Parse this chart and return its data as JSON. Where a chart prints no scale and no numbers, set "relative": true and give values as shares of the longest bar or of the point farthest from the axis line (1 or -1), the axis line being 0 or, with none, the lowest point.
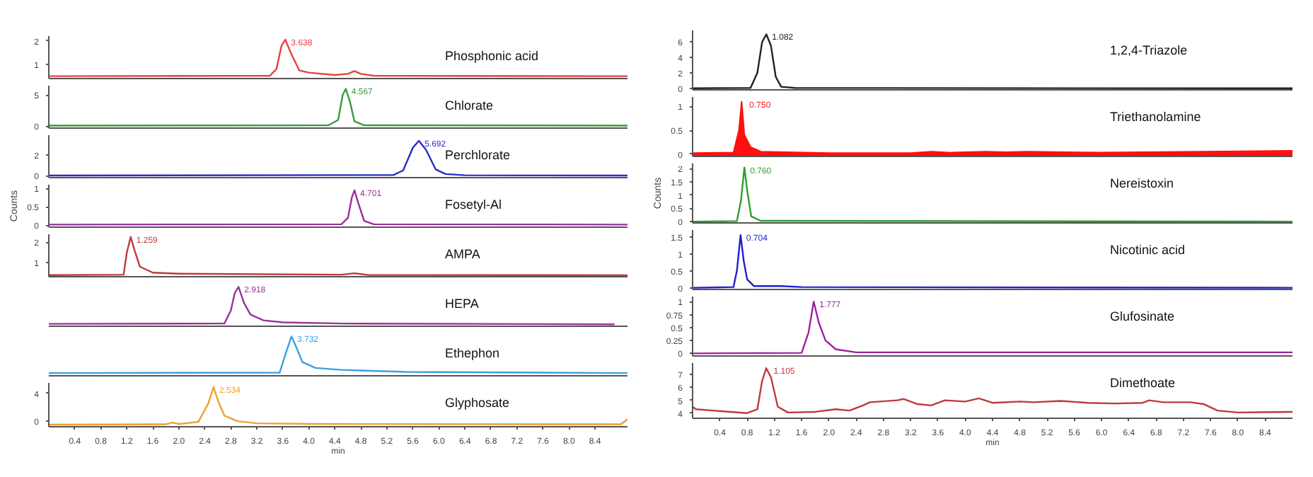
{
  "chart_data": [
    {
      "type": "line",
      "title": "Phosphonic acid",
      "x": [
        0,
        3.4,
        3.5,
        3.58,
        3.638,
        3.72,
        3.85,
        4.0,
        4.4,
        4.6,
        4.7,
        4.8,
        5.0,
        8.9
      ],
      "xlim": [
        0,
        8.9
      ],
      "ylim": [
        0.4,
        2.2
      ],
      "yticks": [
        1,
        2
      ],
      "tick_labels": "y",
      "annotations": [
        {
          "text": "3.638",
          "x": 3.638,
          "y": 2.05
        }
      ],
      "series": [
        {
          "color": "#e8413c",
          "values": [
            0.5,
            0.52,
            0.8,
            1.8,
            2.05,
            1.5,
            0.75,
            0.65,
            0.55,
            0.6,
            0.72,
            0.6,
            0.52,
            0.5
          ]
        }
      ]
    },
    {
      "type": "line",
      "title": "Chlorate",
      "x": [
        0,
        4.3,
        4.45,
        4.52,
        4.567,
        4.63,
        4.7,
        4.85,
        8.9
      ],
      "xlim": [
        0,
        8.9
      ],
      "ylim": [
        -0.3,
        6.5
      ],
      "yticks": [
        0,
        5
      ],
      "tick_labels": "y",
      "annotations": [
        {
          "text": "4.567",
          "x": 4.567,
          "y": 6.0
        }
      ],
      "series": [
        {
          "color": "#3a9a3a",
          "values": [
            0.1,
            0.15,
            1,
            5,
            6.0,
            4,
            0.8,
            0.15,
            0.1
          ]
        }
      ]
    },
    {
      "type": "line",
      "title": "Perchlorate",
      "x": [
        0,
        5.3,
        5.45,
        5.6,
        5.692,
        5.8,
        5.95,
        6.1,
        6.4,
        8.9
      ],
      "xlim": [
        0,
        8.9
      ],
      "ylim": [
        -0.2,
        3.9
      ],
      "yticks": [
        0,
        2
      ],
      "tick_labels": "y",
      "annotations": [
        {
          "text": "5.692",
          "x": 5.692,
          "y": 3.35
        }
      ],
      "series": [
        {
          "color": "#2b2bc8",
          "values": [
            0,
            0.05,
            0.5,
            2.7,
            3.35,
            2.5,
            0.6,
            0.15,
            0.03,
            0
          ]
        }
      ]
    },
    {
      "type": "line",
      "title": "Fosetyl-Al",
      "ylabel": "Counts",
      "x": [
        0,
        4.5,
        4.6,
        4.66,
        4.701,
        4.76,
        4.85,
        5.0,
        8.9
      ],
      "xlim": [
        0,
        8.9
      ],
      "ylim": [
        -0.05,
        1.1
      ],
      "yticks": [
        0,
        0.5,
        1
      ],
      "tick_labels": "y",
      "annotations": [
        {
          "text": "4.701",
          "x": 4.701,
          "y": 0.95
        }
      ],
      "series": [
        {
          "color": "#9b2d9b",
          "values": [
            0.02,
            0.03,
            0.2,
            0.75,
            0.95,
            0.6,
            0.12,
            0.03,
            0.02
          ]
        }
      ]
    },
    {
      "type": "line",
      "title": "AMPA",
      "x": [
        0,
        1.15,
        1.2,
        1.259,
        1.32,
        1.4,
        1.6,
        2.0,
        4.5,
        4.7,
        4.9,
        8.9
      ],
      "xlim": [
        0,
        8.9
      ],
      "ylim": [
        0.3,
        2.4
      ],
      "yticks": [
        1,
        2
      ],
      "tick_labels": "y",
      "annotations": [
        {
          "text": "1.259",
          "x": 1.259,
          "y": 2.27
        }
      ],
      "series": [
        {
          "color": "#c0393b",
          "values": [
            0.38,
            0.4,
            1.5,
            2.27,
            1.6,
            0.8,
            0.5,
            0.45,
            0.4,
            0.47,
            0.39,
            0.37
          ]
        }
      ]
    },
    {
      "type": "line",
      "title": "HEPA",
      "relative": true,
      "x": [
        0,
        2.7,
        2.8,
        2.86,
        2.918,
        3.0,
        3.1,
        3.3,
        3.6,
        4.5,
        8.7
      ],
      "xlim": [
        0,
        8.9
      ],
      "tick_labels": false,
      "annotations": [
        {
          "text": "2.918",
          "x": 2.918,
          "y": 1
        }
      ],
      "series": [
        {
          "color": "#993399",
          "values": [
            0.06,
            0.07,
            0.4,
            0.85,
            1,
            0.6,
            0.3,
            0.15,
            0.1,
            0.07,
            0.05
          ]
        }
      ]
    },
    {
      "type": "line",
      "title": "Ethephon",
      "relative": true,
      "x": [
        0,
        3.55,
        3.65,
        3.732,
        3.8,
        3.9,
        4.1,
        4.5,
        5.5,
        8.9
      ],
      "xlim": [
        0,
        8.9
      ],
      "tick_labels": false,
      "annotations": [
        {
          "text": "3.732",
          "x": 3.732,
          "y": 1
        }
      ],
      "series": [
        {
          "color": "#3aa0e0",
          "values": [
            0.07,
            0.08,
            0.6,
            1,
            0.75,
            0.35,
            0.2,
            0.15,
            0.1,
            0.07
          ]
        }
      ]
    },
    {
      "type": "line",
      "title": "Glyphosate",
      "xlabel": "min",
      "x": [
        0,
        1.8,
        1.9,
        2.0,
        2.3,
        2.45,
        2.534,
        2.6,
        2.7,
        2.9,
        3.2,
        4.0,
        8.8,
        8.9
      ],
      "xlim": [
        0,
        8.9
      ],
      "ylim": [
        -0.8,
        5.5
      ],
      "yticks": [
        0,
        4
      ],
      "xticks": [
        0.4,
        0.8,
        1.2,
        1.6,
        {
          "value": 2,
          "label": "2.0"
        },
        2.4,
        2.8,
        3.2,
        3.6,
        {
          "value": 4,
          "label": "4.0"
        },
        4.4,
        4.8,
        5.2,
        5.6,
        {
          "value": 6,
          "label": "6.0"
        },
        6.4,
        6.8,
        7.2,
        7.6,
        {
          "value": 8,
          "label": "8.0"
        },
        8.4
      ],
      "annotations": [
        {
          "text": "2.534",
          "x": 2.534,
          "y": 4.9
        }
      ],
      "series": [
        {
          "color": "#f0a030",
          "values": [
            -0.5,
            -0.45,
            -0.2,
            -0.4,
            -0.1,
            2.5,
            4.9,
            3,
            0.8,
            0,
            -0.3,
            -0.4,
            -0.45,
            0.3
          ]
        }
      ]
    },
    {
      "type": "line",
      "title": "1,2,4-Triazole",
      "x": [
        0,
        0.85,
        0.95,
        1.02,
        1.082,
        1.15,
        1.22,
        1.3,
        1.5,
        8.8
      ],
      "xlim": [
        0,
        8.8
      ],
      "ylim": [
        -0.2,
        7.5
      ],
      "yticks": [
        0,
        2,
        4,
        6
      ],
      "tick_labels": "y",
      "annotations": [
        {
          "text": "1.082",
          "x": 1.082,
          "y": 7.0
        }
      ],
      "series": [
        {
          "color": "#222222",
          "values": [
            0,
            0.05,
            2,
            6,
            7,
            5.5,
            1.5,
            0.2,
            0.05,
            0
          ]
        }
      ]
    },
    {
      "type": "area",
      "title": "Triethanolamine",
      "x": [
        0,
        0.6,
        0.68,
        0.72,
        0.76,
        0.85,
        1.0,
        2.0,
        3.2,
        3.5,
        3.8,
        4.3,
        4.6,
        4.9,
        6.0,
        7.5,
        8.8
      ],
      "xlim": [
        0,
        8.8
      ],
      "ylim": [
        -0.05,
        1.2
      ],
      "yticks": [
        0,
        0.5,
        1
      ],
      "tick_labels": "y",
      "annotations": [
        {
          "text": "0.750",
          "x": 0.75,
          "y": 1.1
        }
      ],
      "series": [
        {
          "color": "#ff1010",
          "values": [
            0.02,
            0.03,
            0.5,
            1.1,
            0.4,
            0.15,
            0.05,
            0.02,
            0.02,
            0.05,
            0.03,
            0.05,
            0.04,
            0.05,
            0.03,
            0.05,
            0.07
          ]
        }
      ]
    },
    {
      "type": "line",
      "title": "Nereistoxin",
      "ylabel": "Counts",
      "x": [
        0,
        0.65,
        0.71,
        0.76,
        0.8,
        0.86,
        1.0,
        8.8
      ],
      "xlim": [
        0,
        8.8
      ],
      "ylim": [
        -0.05,
        2.2
      ],
      "yticks": [
        0,
        0.5,
        1,
        1.5,
        2
      ],
      "tick_labels": "y",
      "annotations": [
        {
          "text": "0.760",
          "x": 0.76,
          "y": 2.05
        }
      ],
      "series": [
        {
          "color": "#2e9e2e",
          "values": [
            0,
            0.02,
            0.8,
            2.05,
            1.2,
            0.2,
            0.03,
            0
          ]
        }
      ]
    },
    {
      "type": "line",
      "title": "Nicotinic acid",
      "x": [
        0,
        0.6,
        0.65,
        0.704,
        0.75,
        0.8,
        0.9,
        1.3,
        1.6,
        8.8
      ],
      "xlim": [
        0,
        8.8
      ],
      "ylim": [
        -0.05,
        1.7
      ],
      "yticks": [
        0,
        0.5,
        1,
        1.5
      ],
      "tick_labels": "y",
      "annotations": [
        {
          "text": "0.704",
          "x": 0.704,
          "y": 1.55
        }
      ],
      "series": [
        {
          "color": "#1f1fd0",
          "values": [
            0,
            0.02,
            0.5,
            1.55,
            0.8,
            0.25,
            0.05,
            0.05,
            0.02,
            0
          ]
        }
      ]
    },
    {
      "type": "line",
      "title": "Glufosinate",
      "x": [
        0,
        1.6,
        1.7,
        1.777,
        1.85,
        1.95,
        2.1,
        2.4,
        8.8
      ],
      "xlim": [
        0,
        8.8
      ],
      "ylim": [
        -0.05,
        1.1
      ],
      "yticks": [
        0,
        0.25,
        0.5,
        0.75,
        1
      ],
      "tick_labels": "y",
      "annotations": [
        {
          "text": "1.777",
          "x": 1.777,
          "y": 1.0
        }
      ],
      "series": [
        {
          "color": "#a020a0",
          "values": [
            0,
            0.01,
            0.4,
            1.0,
            0.6,
            0.25,
            0.08,
            0.02,
            0.02
          ]
        }
      ]
    },
    {
      "type": "line",
      "title": "Dimethoate",
      "xlabel": "min",
      "x": [
        0,
        0.05,
        0.3,
        0.8,
        0.95,
        1.02,
        1.08,
        1.15,
        1.25,
        1.4,
        1.8,
        2.1,
        2.3,
        2.5,
        2.6,
        3.0,
        3.1,
        3.3,
        3.5,
        3.7,
        4.0,
        4.2,
        4.4,
        4.8,
        5.0,
        5.4,
        5.8,
        6.2,
        6.6,
        6.7,
        6.9,
        7.3,
        7.5,
        7.7,
        8.0,
        8.8
      ],
      "xlim": [
        0,
        8.8
      ],
      "ylim": [
        3.6,
        7.9
      ],
      "yticks": [
        4,
        5,
        6,
        7
      ],
      "xticks": [
        0.4,
        0.8,
        1.2,
        1.6,
        {
          "value": 2,
          "label": "2.0"
        },
        2.4,
        2.8,
        3.2,
        3.6,
        {
          "value": 4,
          "label": "4.0"
        },
        4.4,
        4.8,
        5.2,
        5.6,
        {
          "value": 6,
          "label": "6.0"
        },
        6.4,
        6.8,
        7.2,
        7.6,
        {
          "value": 8,
          "label": "8.0"
        },
        8.4
      ],
      "annotations": [
        {
          "text": "1.105",
          "x": 1.105,
          "y": 7.5
        }
      ],
      "series": [
        {
          "color": "#c0393b",
          "values": [
            4.5,
            4.3,
            4.2,
            4.0,
            4.3,
            6.5,
            7.5,
            6.8,
            4.5,
            4.05,
            4.1,
            4.3,
            4.2,
            4.6,
            4.85,
            5.0,
            5.1,
            4.7,
            4.6,
            5.0,
            4.9,
            5.15,
            4.8,
            4.9,
            4.85,
            4.95,
            4.8,
            4.75,
            4.8,
            5.0,
            4.85,
            4.85,
            4.7,
            4.2,
            4.05,
            4.1
          ]
        }
      ]
    }
  ]
}
